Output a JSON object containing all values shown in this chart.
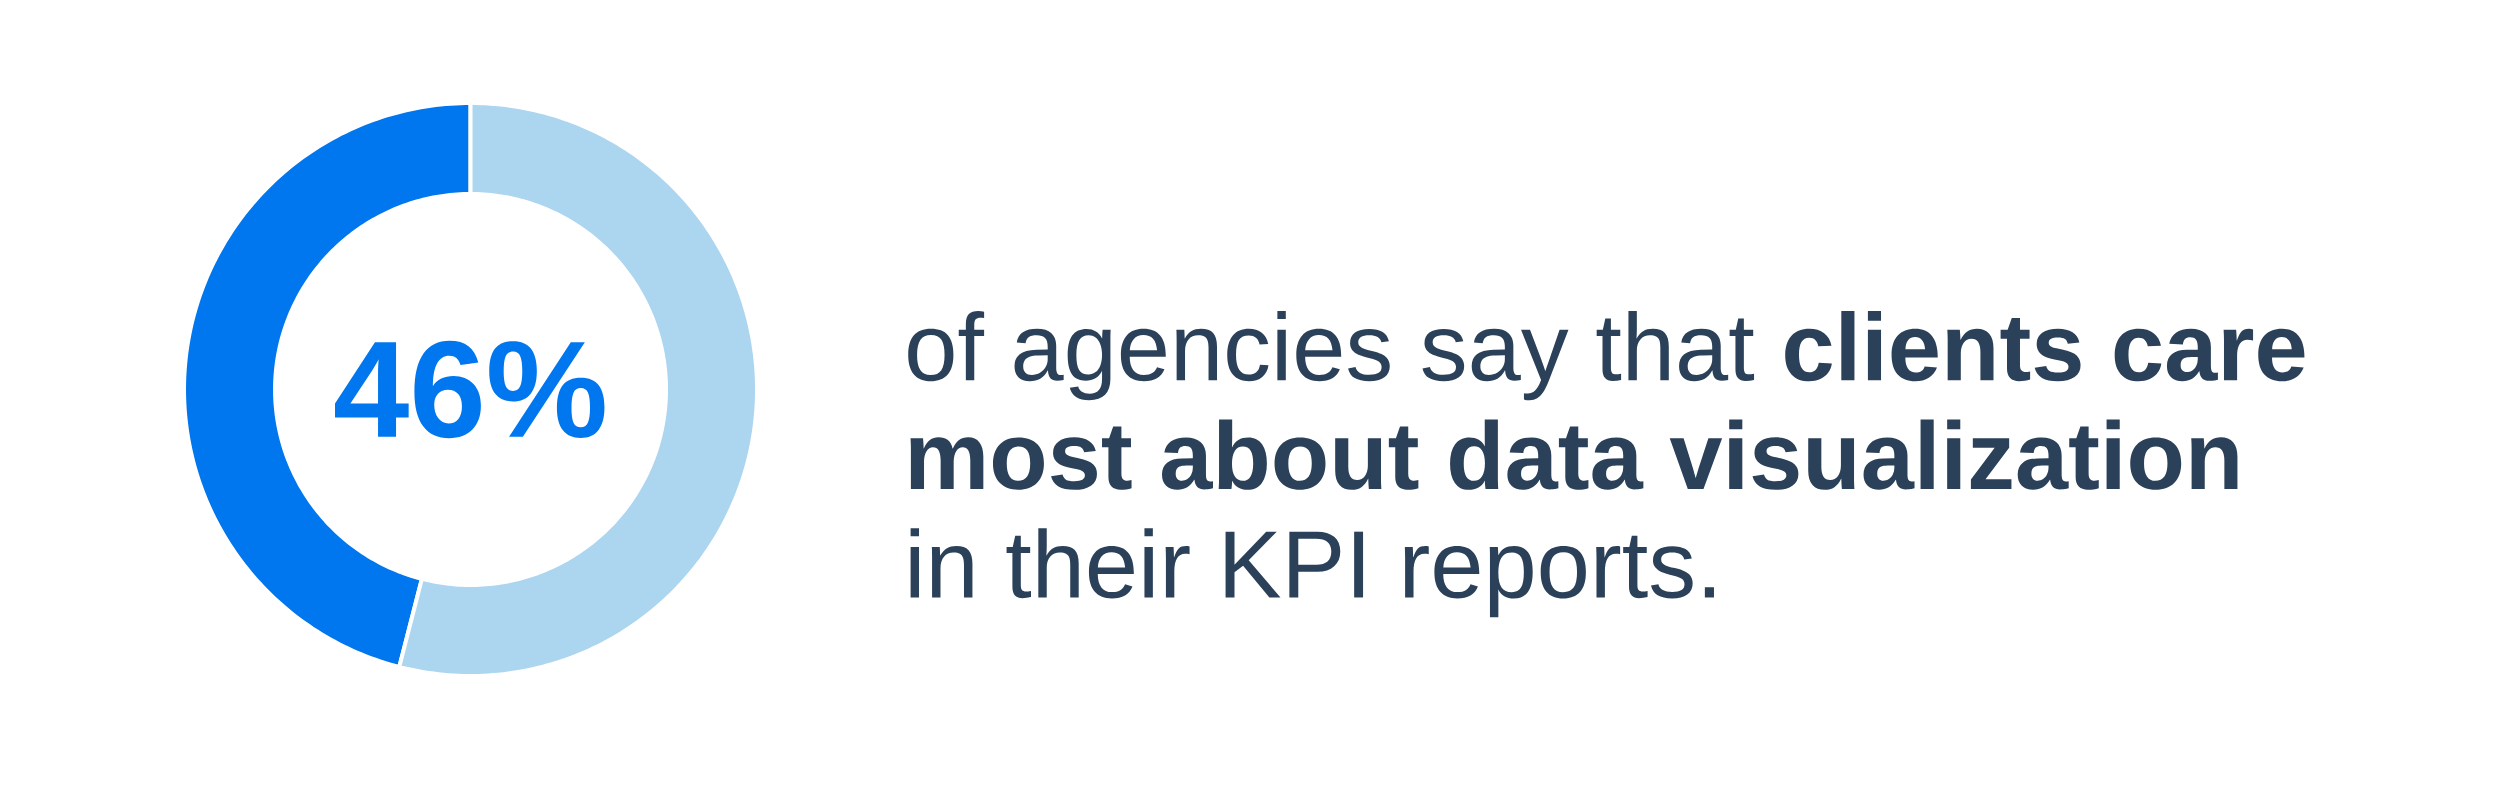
{
  "chart_data": {
    "type": "donut",
    "title": "of agencies say that **clients care most about data visualization** in their KPI reports.",
    "categories": [
      null,
      null
    ],
    "values": [
      46,
      54
    ],
    "colors": [
      "#0077ee",
      "#acd5f0"
    ],
    "value_labels": [
      "46%",
      null
    ]
  }
}
